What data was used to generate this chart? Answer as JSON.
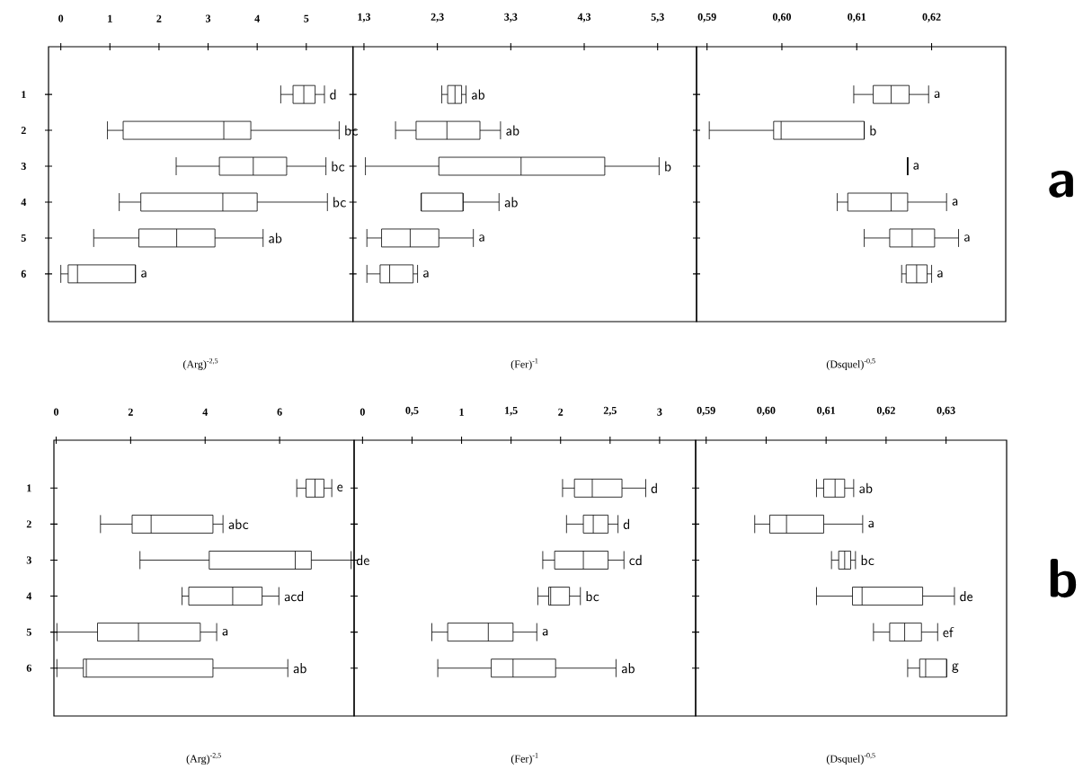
{
  "chart_data": [
    {
      "type": "box",
      "orientation": "horizontal",
      "xlabel": "(Arg)$^{-2,5}$",
      "categories": [
        "1",
        "2",
        "3",
        "4",
        "5",
        "6"
      ],
      "xlim": [
        -0.25,
        5.95
      ],
      "xticks": [
        0,
        1,
        2,
        3,
        4,
        5
      ],
      "boxes": [
        {
          "low": 4.48,
          "q1": 4.73,
          "median": 4.95,
          "q3": 5.18,
          "high": 5.37
        },
        {
          "low": 0.95,
          "q1": 1.27,
          "median": 3.32,
          "q3": 3.87,
          "high": 5.67
        },
        {
          "low": 2.35,
          "q1": 3.23,
          "median": 3.92,
          "q3": 4.6,
          "high": 5.4
        },
        {
          "low": 1.19,
          "q1": 1.63,
          "median": 3.3,
          "q3": 4.0,
          "high": 5.43
        },
        {
          "low": 0.67,
          "q1": 1.59,
          "median": 2.36,
          "q3": 3.14,
          "high": 4.12
        },
        {
          "low": 0.0,
          "q1": 0.15,
          "median": 0.34,
          "q3": 1.52,
          "high": 1.52
        }
      ],
      "annotations": [
        "d",
        "bc",
        "bc",
        "bc",
        "ab",
        "a"
      ]
    },
    {
      "type": "box",
      "orientation": "horizontal",
      "xlabel": "(Fer)$^{-1}$",
      "categories": [
        "1",
        "2",
        "3",
        "4",
        "5",
        "6"
      ],
      "tick_labels": "x",
      "xlim": [
        1.15,
        5.83
      ],
      "xticks": [
        {
          "value": 1.3,
          "label": "1,3"
        },
        {
          "value": 2.3,
          "label": "2,3"
        },
        {
          "value": 3.3,
          "label": "3,3"
        },
        {
          "value": 4.3,
          "label": "4,3"
        },
        {
          "value": 5.3,
          "label": "5,3"
        }
      ],
      "boxes": [
        {
          "low": 2.36,
          "q1": 2.44,
          "median": 2.54,
          "q3": 2.63,
          "high": 2.69
        },
        {
          "low": 1.73,
          "q1": 2.01,
          "median": 2.43,
          "q3": 2.88,
          "high": 3.16
        },
        {
          "low": 1.32,
          "q1": 2.32,
          "median": 3.44,
          "q3": 4.58,
          "high": 5.32
        },
        {
          "low": 2.08,
          "q1": 2.08,
          "median": 2.65,
          "q3": 2.65,
          "high": 3.14
        },
        {
          "low": 1.34,
          "q1": 1.54,
          "median": 1.93,
          "q3": 2.32,
          "high": 2.79
        },
        {
          "low": 1.34,
          "q1": 1.52,
          "median": 1.65,
          "q3": 1.97,
          "high": 2.03
        }
      ],
      "annotations": [
        "ab",
        "ab",
        "b",
        "ab",
        "a",
        "a"
      ]
    },
    {
      "type": "box",
      "orientation": "horizontal",
      "xlabel": "(Dsquel)$^{-0,5}$",
      "categories": [
        "1",
        "2",
        "3",
        "4",
        "5",
        "6"
      ],
      "tick_labels": "x",
      "xlim": [
        0.5886,
        0.6299
      ],
      "xticks": [
        {
          "value": 0.59,
          "label": "0,59"
        },
        {
          "value": 0.6,
          "label": "0,60"
        },
        {
          "value": 0.61,
          "label": "0,61"
        },
        {
          "value": 0.62,
          "label": "0,62"
        }
      ],
      "boxes": [
        {
          "low": 0.6096,
          "q1": 0.6122,
          "median": 0.6146,
          "q3": 0.617,
          "high": 0.6196
        },
        {
          "low": 0.5903,
          "q1": 0.5989,
          "median": 0.5999,
          "q3": 0.611,
          "high": 0.611
        },
        {
          "low": 0.6168,
          "q1": 0.6168,
          "median": 0.6168,
          "q3": 0.6168,
          "high": 0.6168
        },
        {
          "low": 0.6074,
          "q1": 0.6088,
          "median": 0.6146,
          "q3": 0.6168,
          "high": 0.622
        },
        {
          "low": 0.611,
          "q1": 0.6144,
          "median": 0.6174,
          "q3": 0.6204,
          "high": 0.6236
        },
        {
          "low": 0.616,
          "q1": 0.6166,
          "median": 0.618,
          "q3": 0.6194,
          "high": 0.62
        }
      ],
      "annotations": [
        "a",
        "b",
        "a",
        "a",
        "a",
        "a",
        "a"
      ]
    },
    {
      "type": "box",
      "orientation": "horizontal",
      "xlabel": "(Arg)$^{-2,5}$",
      "categories": [
        "1",
        "2",
        "3",
        "4",
        "5",
        "6"
      ],
      "xlim": [
        -0.06,
        8.0
      ],
      "xticks": [
        0,
        2,
        4,
        6
      ],
      "boxes": [
        {
          "low": 6.46,
          "q1": 6.71,
          "median": 6.95,
          "q3": 7.19,
          "high": 7.4
        },
        {
          "low": 1.19,
          "q1": 2.04,
          "median": 2.55,
          "q3": 4.21,
          "high": 4.48
        },
        {
          "low": 2.25,
          "q1": 4.11,
          "median": 6.42,
          "q3": 6.85,
          "high": 7.92
        },
        {
          "low": 3.38,
          "q1": 3.56,
          "median": 4.74,
          "q3": 5.53,
          "high": 5.98
        },
        {
          "low": 0.02,
          "q1": 1.11,
          "median": 2.21,
          "q3": 3.87,
          "high": 4.31
        },
        {
          "low": 0.02,
          "q1": 0.73,
          "median": 0.81,
          "q3": 4.21,
          "high": 6.22
        }
      ],
      "annotations": [
        "e",
        "abc",
        "de",
        "acd",
        "a",
        "ab"
      ]
    },
    {
      "type": "box",
      "orientation": "horizontal",
      "xlabel": "(Fer)$^{-1}$",
      "categories": [
        "1",
        "2",
        "3",
        "4",
        "5",
        "6"
      ],
      "tick_labels": "x",
      "xlim": [
        -0.085,
        3.364
      ],
      "xticks": [
        0,
        {
          "value": 0.5,
          "label": "0,5"
        },
        1,
        {
          "value": 1.5,
          "label": "1,5"
        },
        2,
        {
          "value": 2.5,
          "label": "2,5"
        },
        3
      ],
      "boxes": [
        {
          "low": 2.02,
          "q1": 2.14,
          "median": 2.32,
          "q3": 2.62,
          "high": 2.86
        },
        {
          "low": 2.06,
          "q1": 2.23,
          "median": 2.33,
          "q3": 2.48,
          "high": 2.58
        },
        {
          "low": 1.82,
          "q1": 1.94,
          "median": 2.23,
          "q3": 2.48,
          "high": 2.64
        },
        {
          "low": 1.77,
          "q1": 1.88,
          "median": 1.9,
          "q3": 2.09,
          "high": 2.2
        },
        {
          "low": 0.7,
          "q1": 0.86,
          "median": 1.27,
          "q3": 1.52,
          "high": 1.76
        },
        {
          "low": 0.76,
          "q1": 1.3,
          "median": 1.52,
          "q3": 1.95,
          "high": 2.56
        }
      ],
      "annotations": [
        "d",
        "d",
        "cd",
        "bc",
        "a",
        "ab"
      ]
    },
    {
      "type": "box",
      "orientation": "horizontal",
      "xlabel": "(Dsquel)$^{-0,5}$",
      "categories": [
        "1",
        "2",
        "3",
        "4",
        "5",
        "6"
      ],
      "tick_labels": "x",
      "xlim": [
        0.58825,
        0.6401
      ],
      "xticks": [
        {
          "value": 0.59,
          "label": "0,59"
        },
        {
          "value": 0.6,
          "label": "0,60"
        },
        {
          "value": 0.61,
          "label": "0,61"
        },
        {
          "value": 0.62,
          "label": "0,62"
        },
        {
          "value": 0.63,
          "label": "0,63"
        }
      ],
      "boxes": [
        {
          "low": 0.6084,
          "q1": 0.6096,
          "median": 0.6115,
          "q3": 0.6131,
          "high": 0.6146
        },
        {
          "low": 0.5981,
          "q1": 0.6006,
          "median": 0.6034,
          "q3": 0.6096,
          "high": 0.6161
        },
        {
          "low": 0.6109,
          "q1": 0.6121,
          "median": 0.6131,
          "q3": 0.6141,
          "high": 0.6149
        },
        {
          "low": 0.6084,
          "q1": 0.6144,
          "median": 0.616,
          "q3": 0.6261,
          "high": 0.6314
        },
        {
          "low": 0.6179,
          "q1": 0.6206,
          "median": 0.6231,
          "q3": 0.6259,
          "high": 0.6286
        },
        {
          "low": 0.6236,
          "q1": 0.6256,
          "median": 0.6266,
          "q3": 0.6301,
          "high": 0.6301
        }
      ],
      "annotations": [
        "ab",
        "a",
        "bc",
        "de",
        "ef",
        "g",
        "b"
      ]
    }
  ]
}
